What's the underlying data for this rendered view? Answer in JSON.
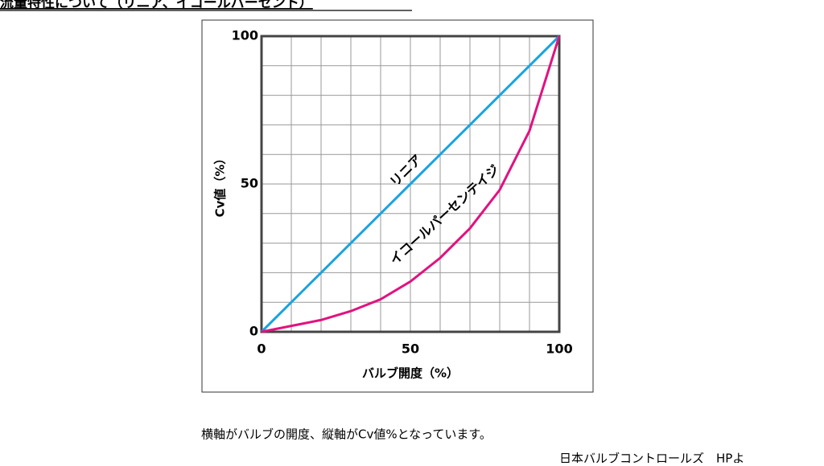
{
  "heading": "流量特性について（リニア、イコールパーセント）",
  "caption": "横軸がバルブの開度、縦軸がCv値%となっています。",
  "source": "日本バルブコントロールズ　HPよ",
  "chart_data": {
    "type": "line",
    "x_label": "バルブ開度（%）",
    "y_label": "Cv値（%）",
    "x": [
      0,
      10,
      20,
      30,
      40,
      50,
      60,
      70,
      80,
      90,
      100
    ],
    "series": [
      {
        "name": "リニア",
        "color": "#1aa3e0",
        "values": [
          0,
          10,
          20,
          30,
          40,
          50,
          60,
          70,
          80,
          90,
          100
        ]
      },
      {
        "name": "イコールパーセンテイジ",
        "color": "#e2127f",
        "values": [
          0,
          2,
          4,
          7,
          11,
          17,
          25,
          35,
          48,
          68,
          100
        ]
      }
    ],
    "xlim": [
      0,
      100
    ],
    "ylim": [
      0,
      100
    ],
    "xticks": [
      0,
      50,
      100
    ],
    "yticks": [
      0,
      50,
      100
    ],
    "xgrid": [
      10,
      20,
      30,
      40,
      50,
      60,
      70,
      80,
      90
    ],
    "ygrid": [
      10,
      20,
      30,
      40,
      50,
      60,
      70,
      80,
      90
    ],
    "grid": true
  }
}
